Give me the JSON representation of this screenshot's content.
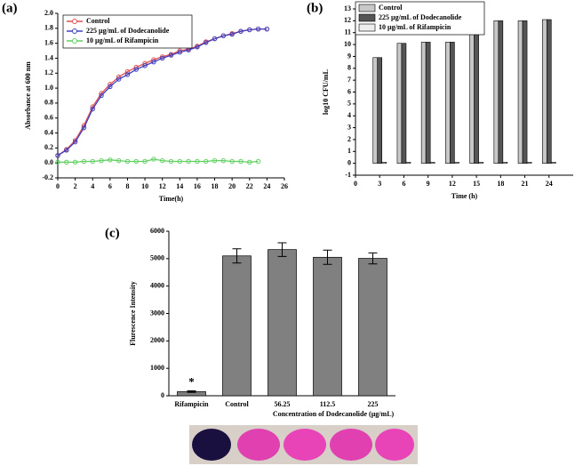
{
  "chart_data": [
    {
      "type": "line",
      "panel": "(a)",
      "xlabel": "Time(h)",
      "ylabel": "Absorbance at 600 nm",
      "x": [
        0,
        1,
        2,
        3,
        4,
        5,
        6,
        7,
        8,
        9,
        10,
        11,
        12,
        13,
        14,
        15,
        16,
        17,
        18,
        19,
        20,
        21,
        22,
        23,
        24
      ],
      "series": [
        {
          "name": "Control",
          "color": "#e05050",
          "values": [
            0.1,
            0.18,
            0.3,
            0.5,
            0.75,
            0.93,
            1.05,
            1.15,
            1.22,
            1.28,
            1.33,
            1.38,
            1.42,
            1.45,
            1.5,
            1.52,
            1.56,
            1.62,
            1.66,
            1.7,
            1.73,
            1.76,
            1.78,
            1.79,
            1.79
          ]
        },
        {
          "name": "225 µg/mL of Dodecanolide",
          "color": "#4040c0",
          "values": [
            0.1,
            0.17,
            0.28,
            0.47,
            0.72,
            0.9,
            1.02,
            1.12,
            1.18,
            1.25,
            1.3,
            1.35,
            1.4,
            1.44,
            1.48,
            1.51,
            1.55,
            1.61,
            1.66,
            1.7,
            1.72,
            1.76,
            1.78,
            1.79,
            1.79
          ]
        },
        {
          "name": "10 µg/mL of Rifampicin",
          "color": "#60d060",
          "values": [
            0.01,
            0.01,
            0.01,
            0.02,
            0.02,
            0.03,
            0.04,
            0.03,
            0.02,
            0.02,
            0.02,
            0.05,
            0.03,
            0.02,
            0.02,
            0.02,
            0.02,
            0.02,
            0.03,
            0.03,
            0.02,
            0.02,
            0.01,
            0.02,
            null
          ]
        }
      ],
      "xlim": [
        0,
        26
      ],
      "xticks": [
        0,
        2,
        4,
        6,
        8,
        10,
        12,
        14,
        16,
        18,
        20,
        22,
        24,
        26
      ],
      "ylim": [
        -0.2,
        2.0
      ],
      "yticks": [
        -0.2,
        {
          "value": 0,
          "label": "0.0"
        },
        0.2,
        0.4,
        0.6,
        0.8,
        {
          "value": 1,
          "label": "1.0"
        },
        1.2,
        1.4,
        1.6,
        1.8,
        {
          "value": 2,
          "label": "2.0"
        }
      ]
    },
    {
      "type": "groupbar",
      "panel": "(b)",
      "xlabel": "Time (h)",
      "ylabel": "log10 CFU/mL",
      "x": [
        3,
        6,
        9,
        12,
        15,
        18,
        21,
        24
      ],
      "series": [
        {
          "name": "Control",
          "color": "#c8c8c8",
          "values": [
            8.9,
            10.1,
            10.2,
            10.2,
            11.9,
            12.0,
            12.0,
            12.1
          ]
        },
        {
          "name": "225 µg/mL of Dodecanolide",
          "color": "#555555",
          "values": [
            8.9,
            10.1,
            10.2,
            10.2,
            11.9,
            12.0,
            12.0,
            12.1
          ]
        },
        {
          "name": "10 µg/mL of Rifampicin",
          "color": "#eeeeee",
          "values": [
            0.1,
            0.1,
            0.1,
            0.1,
            0.1,
            0.1,
            0.1,
            0.1
          ]
        }
      ],
      "xlim": [
        0,
        27
      ],
      "xticks": [
        0,
        3,
        6,
        9,
        12,
        15,
        18,
        21,
        24
      ],
      "ylim": [
        -1,
        13
      ],
      "yticks": [
        -1,
        0,
        1,
        2,
        3,
        4,
        5,
        6,
        7,
        8,
        9,
        10,
        11,
        12,
        13
      ]
    },
    {
      "type": "bar",
      "panel": "(c)",
      "xlabel": "Concentration of Dodecanolide (µg/mL)",
      "ylabel": "Flurescence Intensity",
      "categories": [
        "Rifampicin",
        "Control",
        "56.25",
        "112.5",
        "225"
      ],
      "values": [
        150,
        5100,
        5330,
        5050,
        5010
      ],
      "errors": [
        30,
        260,
        250,
        260,
        200
      ],
      "annotation": "*",
      "color": "#808080",
      "ylim": [
        0,
        6000
      ],
      "yticks": [
        0,
        1000,
        2000,
        3000,
        4000,
        5000,
        6000
      ]
    }
  ]
}
